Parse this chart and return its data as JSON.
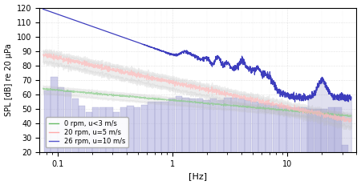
{
  "xlabel": "[Hz]",
  "ylabel": "SPL [dB] re 20 μPa",
  "xlim": [
    0.07,
    40
  ],
  "ylim": [
    20,
    120
  ],
  "yticks": [
    20,
    30,
    40,
    50,
    60,
    70,
    80,
    90,
    100,
    110,
    120
  ],
  "legend_entries": [
    {
      "label": "0 rpm, u<3 m/s",
      "color": "#66bb66"
    },
    {
      "label": "20 rpm, u=5 m/s",
      "color": "#ffaaaa"
    },
    {
      "label": "26 rpm, u=10 m/s",
      "color": "#5555cc"
    }
  ],
  "bar_color": "#aaaadd",
  "bar_edge_color": "#8888bb",
  "bar_alpha": 0.55,
  "bar_freqs": [
    0.082,
    0.094,
    0.108,
    0.124,
    0.143,
    0.164,
    0.188,
    0.216,
    0.248,
    0.285,
    0.327,
    0.376,
    0.432,
    0.496,
    0.57,
    0.655,
    0.752,
    0.864,
    0.993,
    1.14,
    1.31,
    1.51,
    1.73,
    1.99,
    2.29,
    2.63,
    3.02,
    3.47,
    3.98,
    4.57,
    5.25,
    6.03,
    6.93,
    7.96,
    9.14,
    10.5,
    12.1,
    13.9,
    15.9,
    18.3,
    21.0,
    24.1,
    27.7,
    31.8
  ],
  "bar_heights": [
    63,
    72,
    65,
    63,
    57,
    52,
    48,
    51,
    51,
    51,
    48,
    51,
    52,
    51,
    53,
    55,
    55,
    55,
    57,
    59,
    58,
    57,
    57,
    56,
    57,
    56,
    58,
    58,
    57,
    56,
    55,
    54,
    54,
    53,
    52,
    51,
    51,
    51,
    50,
    50,
    50,
    51,
    51,
    25
  ],
  "background_color": "#ffffff"
}
